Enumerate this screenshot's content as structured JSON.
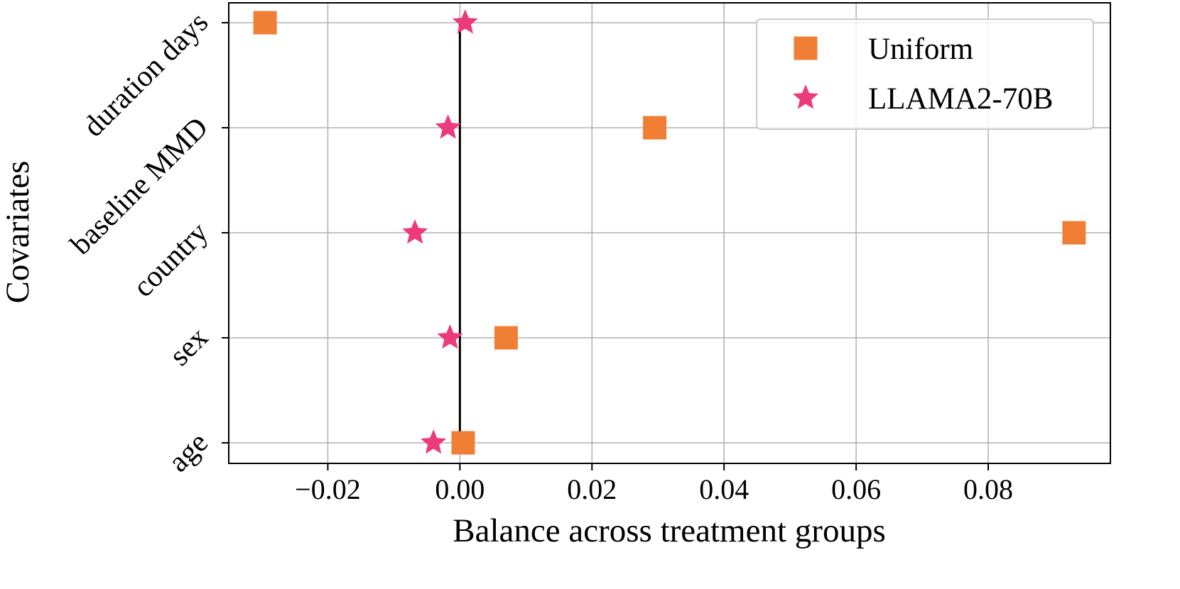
{
  "chart_data": {
    "type": "scatter",
    "title": "",
    "xlabel": "Balance across treatment groups",
    "ylabel": "Covariates",
    "categories": [
      "age",
      "sex",
      "country",
      "baseline MMD",
      "duration days"
    ],
    "xlim": [
      -0.035,
      0.0985
    ],
    "x_ticks": [
      -0.02,
      0.0,
      0.02,
      0.04,
      0.06,
      0.08
    ],
    "x_tick_labels": [
      "−0.02",
      "0.00",
      "0.02",
      "0.04",
      "0.06",
      "0.08"
    ],
    "grid": true,
    "legend_position": "top-right",
    "reference_line_x": 0.0,
    "series": [
      {
        "name": "Uniform",
        "marker": "square",
        "color": "#F07F35",
        "values": [
          0.0005,
          0.007,
          0.093,
          0.0295,
          -0.0295
        ]
      },
      {
        "name": "LLAMA2-70B",
        "marker": "star",
        "color": "#EC3A7C",
        "values": [
          -0.004,
          -0.0015,
          -0.0068,
          -0.0018,
          0.0008
        ]
      }
    ]
  }
}
